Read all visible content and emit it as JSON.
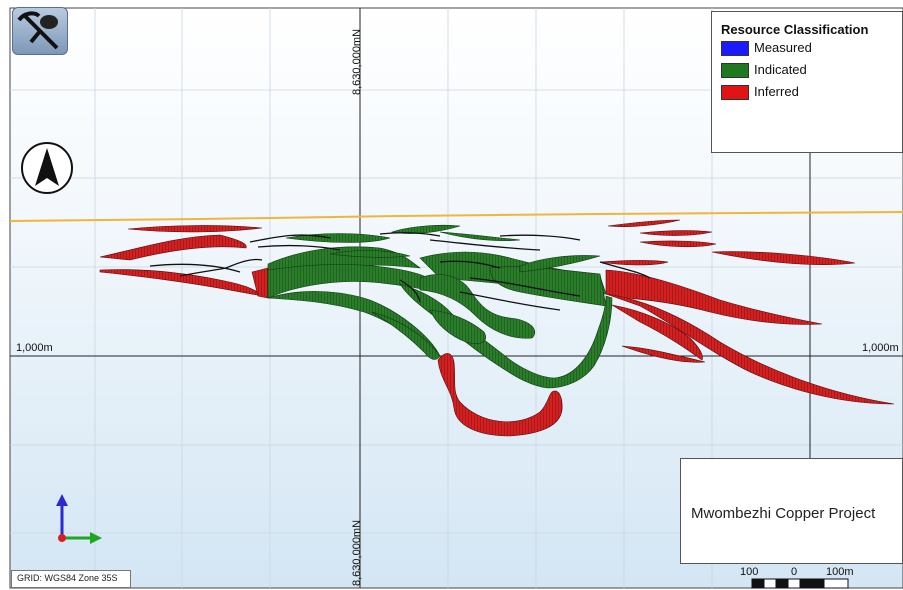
{
  "legend": {
    "title": "Resource Classification",
    "items": [
      {
        "label": "Measured",
        "color": "#1a1aff"
      },
      {
        "label": "Indicated",
        "color": "#1f7a1f"
      },
      {
        "label": "Inferred",
        "color": "#e01414"
      }
    ]
  },
  "project": {
    "title": "Mwombezhi Copper Project"
  },
  "grid_label": "GRID: WGS84 Zone 35S",
  "coordinates": {
    "northing_top": "8,630,000mN",
    "northing_bottom": "8,630,000mN",
    "elevation_left": "1,000m",
    "elevation_right": "1,000m"
  },
  "scale_bar": {
    "labels": [
      "100",
      "0",
      "100m"
    ]
  },
  "colors": {
    "indicated": "#1f7a1f",
    "inferred": "#c81e1e",
    "surface_line": "#f2b53a",
    "sky": "#ffffff",
    "ground": "#dcebf6"
  },
  "icons": {
    "logo": "pick-and-rock-icon",
    "north": "north-arrow-icon",
    "axes": "axis-triad-icon"
  }
}
